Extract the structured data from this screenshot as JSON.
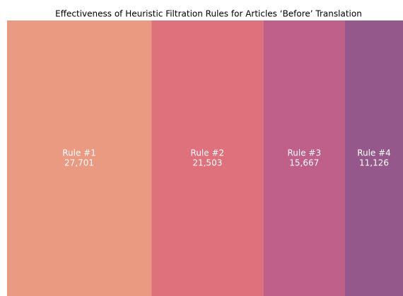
{
  "chart_data": {
    "type": "treemap",
    "title": "Effectiveness of Heuristic Filtration Rules for Articles ‘Before’ Translation",
    "categories": [
      "Rule #1",
      "Rule #2",
      "Rule #3",
      "Rule #4"
    ],
    "values": [
      27701,
      21503,
      15667,
      11126
    ],
    "value_labels": [
      "27,701",
      "21,503",
      "15,667",
      "11,126"
    ],
    "colors": [
      "#eb9a82",
      "#df717d",
      "#be608a",
      "#94588a"
    ]
  }
}
